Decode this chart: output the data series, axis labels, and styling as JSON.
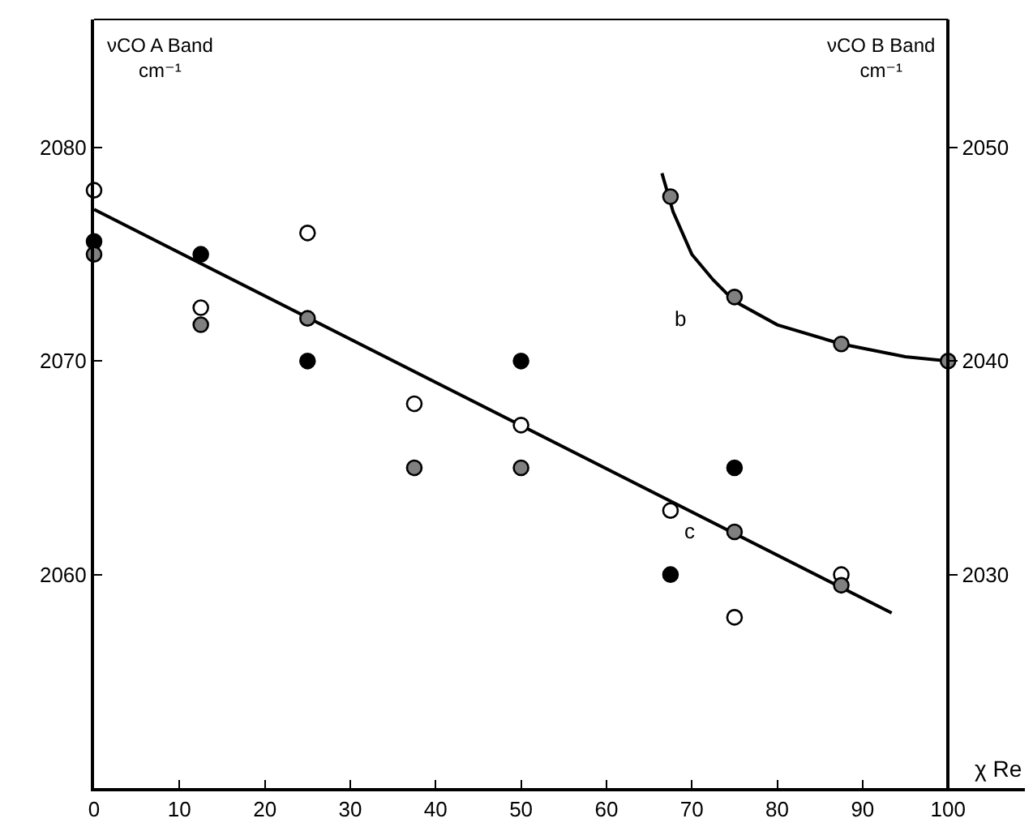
{
  "chart_data": {
    "type": "scatter",
    "xlabel": "χ Re",
    "ylabel": "νCO A Band\ncm⁻¹",
    "y2label": "νCO B Band\ncm⁻¹",
    "xlim": [
      0,
      109
    ],
    "xticks": [
      0,
      10,
      20,
      30,
      40,
      50,
      60,
      70,
      80,
      90,
      100
    ],
    "ylim": [
      2050,
      2086
    ],
    "yticks": [
      2060,
      2070,
      2080
    ],
    "y2lim": [
      2020,
      2056
    ],
    "y2ticks": [
      2030,
      2040,
      2050
    ],
    "marker": "circle",
    "grid": false,
    "annotations": [
      "b",
      "c"
    ],
    "series": [
      {
        "color": "#ffffff",
        "x": [
          0,
          12.5,
          25,
          37.5,
          50,
          67.5,
          75,
          87.5
        ],
        "values": [
          2078,
          2072.5,
          2076,
          2068,
          2067,
          2063,
          2058,
          2060
        ]
      },
      {
        "color": "#000000",
        "x": [
          0,
          12.5,
          25,
          50,
          67.5,
          75
        ],
        "values": [
          2075.6,
          2075,
          2070,
          2070,
          2060,
          2065
        ]
      },
      {
        "color": "#808080",
        "x": [
          0,
          12.5,
          25,
          37.5,
          50,
          75,
          87.5
        ],
        "values": [
          2075,
          2071.7,
          2072,
          2065,
          2065,
          2062,
          2059.5
        ]
      },
      {
        "color": "#808080",
        "axis": "y2",
        "x": [
          67.5,
          75,
          87.5,
          100
        ],
        "values": [
          2047.7,
          2043,
          2040.8,
          2040
        ]
      },
      {
        "type": "line",
        "marker": "none",
        "color": "#000000",
        "x": [
          0,
          93.4
        ],
        "values": [
          2077.1,
          2058.2
        ]
      },
      {
        "type": "line",
        "marker": "none",
        "color": "#000000",
        "axis": "y2",
        "x": [
          66.5,
          67.8,
          70,
          72.5,
          75,
          80,
          87.5,
          95,
          100
        ],
        "values": [
          2048.8,
          2047,
          2045,
          2043.8,
          2042.8,
          2041.7,
          2040.8,
          2040.2,
          2040
        ]
      }
    ]
  }
}
